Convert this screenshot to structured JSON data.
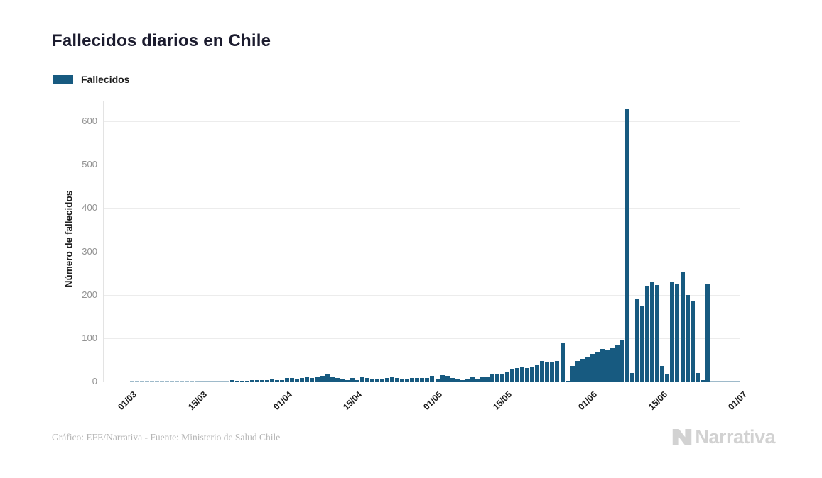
{
  "page": {
    "title": "Fallecidos diarios en Chile"
  },
  "legend": {
    "label": "Fallecidos"
  },
  "footer": {
    "credit": "Gráfico: EFE/Narrativa - Fuente: Ministerio de Salud Chile"
  },
  "logo": {
    "text": "Narrativa"
  },
  "chart_data": {
    "type": "bar",
    "title": "Fallecidos diarios en Chile",
    "series_name": "Fallecidos",
    "xlabel": "",
    "ylabel": "Número de fallecidos",
    "bar_color": "#175a80",
    "grid": "horizontal",
    "legend_position": "top-left",
    "ylim": [
      0,
      650
    ],
    "y_ticks": [
      0,
      100,
      200,
      300,
      400,
      500,
      600
    ],
    "x_ticks": [
      {
        "label": "01/03",
        "day": 0
      },
      {
        "label": "15/03",
        "day": 14
      },
      {
        "label": "01/04",
        "day": 31
      },
      {
        "label": "15/04",
        "day": 45
      },
      {
        "label": "01/05",
        "day": 61
      },
      {
        "label": "15/05",
        "day": 75
      },
      {
        "label": "01/06",
        "day": 92
      },
      {
        "label": "15/06",
        "day": 106
      },
      {
        "label": "01/07",
        "day": 122
      }
    ],
    "x_range_labels": [
      "01/03",
      "01/07"
    ],
    "values": [
      0,
      0,
      0,
      0,
      0,
      0,
      0,
      0,
      0,
      0,
      0,
      0,
      0,
      0,
      0,
      0,
      0,
      0,
      0,
      0,
      4,
      1,
      2,
      2,
      3,
      3,
      3,
      4,
      6,
      4,
      4,
      8,
      8,
      5,
      9,
      12,
      8,
      11,
      13,
      16,
      12,
      9,
      7,
      4,
      9,
      4,
      12,
      8,
      7,
      7,
      7,
      8,
      12,
      9,
      6,
      6,
      8,
      8,
      8,
      9,
      13,
      7,
      14,
      13,
      9,
      5,
      4,
      6,
      11,
      6,
      12,
      12,
      18,
      16,
      18,
      23,
      28,
      31,
      33,
      31,
      35,
      37,
      47,
      44,
      46,
      47,
      89,
      2,
      36,
      48,
      52,
      57,
      63,
      68,
      75,
      72,
      79,
      85,
      96,
      627,
      19,
      192,
      173,
      220,
      231,
      222,
      36,
      16,
      231,
      226,
      253,
      200,
      184,
      19,
      4,
      225,
      0,
      0,
      0,
      0,
      0,
      0
    ]
  }
}
